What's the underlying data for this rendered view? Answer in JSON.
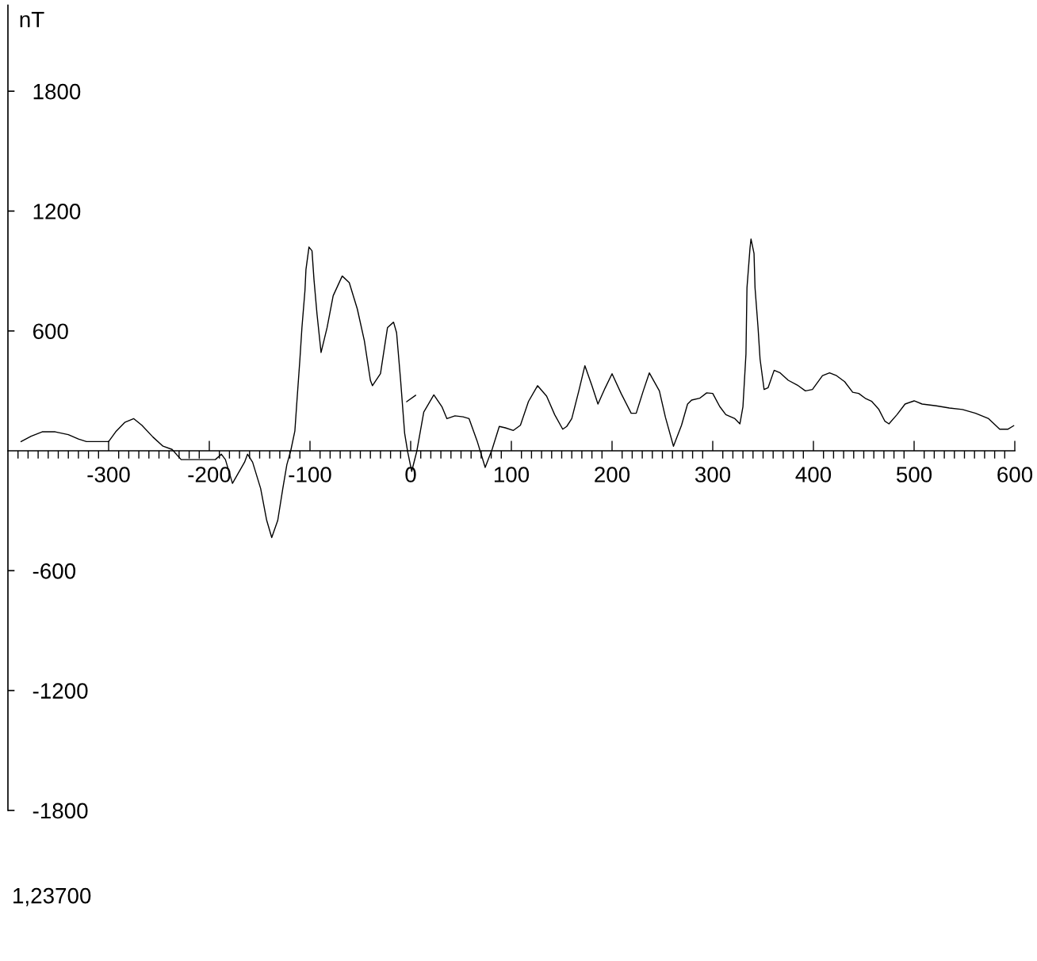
{
  "chart_data": {
    "type": "line",
    "ylabel": "nT",
    "annotations": [
      "1,23700"
    ],
    "xlim": [
      -400,
      600
    ],
    "ylim": [
      -1800,
      2230
    ],
    "xticks": [
      {
        "value": -390,
        "label": null
      },
      {
        "value": -380,
        "label": null
      },
      {
        "value": -370,
        "label": null
      },
      {
        "value": -360,
        "label": null
      },
      {
        "value": -350,
        "label": null
      },
      {
        "value": -340,
        "label": null
      },
      {
        "value": -330,
        "label": null
      },
      {
        "value": -320,
        "label": null
      },
      {
        "value": -310,
        "label": null
      },
      -300,
      {
        "value": -290,
        "label": null
      },
      {
        "value": -280,
        "label": null
      },
      {
        "value": -270,
        "label": null
      },
      {
        "value": -260,
        "label": null
      },
      {
        "value": -250,
        "label": null
      },
      {
        "value": -240,
        "label": null
      },
      {
        "value": -230,
        "label": null
      },
      {
        "value": -220,
        "label": null
      },
      {
        "value": -210,
        "label": null
      },
      -200,
      {
        "value": -190,
        "label": null
      },
      {
        "value": -180,
        "label": null
      },
      {
        "value": -170,
        "label": null
      },
      {
        "value": -160,
        "label": null
      },
      {
        "value": -150,
        "label": null
      },
      {
        "value": -140,
        "label": null
      },
      {
        "value": -130,
        "label": null
      },
      {
        "value": -120,
        "label": null
      },
      {
        "value": -110,
        "label": null
      },
      -100,
      {
        "value": -90,
        "label": null
      },
      {
        "value": -80,
        "label": null
      },
      {
        "value": -70,
        "label": null
      },
      {
        "value": -60,
        "label": null
      },
      {
        "value": -50,
        "label": null
      },
      {
        "value": -40,
        "label": null
      },
      {
        "value": -30,
        "label": null
      },
      {
        "value": -20,
        "label": null
      },
      {
        "value": -10,
        "label": null
      },
      0,
      {
        "value": 10,
        "label": null
      },
      {
        "value": 20,
        "label": null
      },
      {
        "value": 30,
        "label": null
      },
      {
        "value": 40,
        "label": null
      },
      {
        "value": 50,
        "label": null
      },
      {
        "value": 60,
        "label": null
      },
      {
        "value": 70,
        "label": null
      },
      {
        "value": 80,
        "label": null
      },
      {
        "value": 90,
        "label": null
      },
      100,
      {
        "value": 110,
        "label": null
      },
      {
        "value": 120,
        "label": null
      },
      {
        "value": 130,
        "label": null
      },
      {
        "value": 140,
        "label": null
      },
      {
        "value": 150,
        "label": null
      },
      {
        "value": 160,
        "label": null
      },
      {
        "value": 170,
        "label": null
      },
      {
        "value": 180,
        "label": null
      },
      {
        "value": 190,
        "label": null
      },
      200,
      {
        "value": 210,
        "label": null
      },
      {
        "value": 220,
        "label": null
      },
      {
        "value": 230,
        "label": null
      },
      {
        "value": 240,
        "label": null
      },
      {
        "value": 250,
        "label": null
      },
      {
        "value": 260,
        "label": null
      },
      {
        "value": 270,
        "label": null
      },
      {
        "value": 280,
        "label": null
      },
      {
        "value": 290,
        "label": null
      },
      300,
      {
        "value": 310,
        "label": null
      },
      {
        "value": 320,
        "label": null
      },
      {
        "value": 330,
        "label": null
      },
      {
        "value": 340,
        "label": null
      },
      {
        "value": 350,
        "label": null
      },
      {
        "value": 360,
        "label": null
      },
      {
        "value": 370,
        "label": null
      },
      {
        "value": 380,
        "label": null
      },
      {
        "value": 390,
        "label": null
      },
      400,
      {
        "value": 410,
        "label": null
      },
      {
        "value": 420,
        "label": null
      },
      {
        "value": 430,
        "label": null
      },
      {
        "value": 440,
        "label": null
      },
      {
        "value": 450,
        "label": null
      },
      {
        "value": 460,
        "label": null
      },
      {
        "value": 470,
        "label": null
      },
      {
        "value": 480,
        "label": null
      },
      {
        "value": 490,
        "label": null
      },
      500,
      {
        "value": 510,
        "label": null
      },
      {
        "value": 520,
        "label": null
      },
      {
        "value": 530,
        "label": null
      },
      {
        "value": 540,
        "label": null
      },
      {
        "value": 550,
        "label": null
      },
      {
        "value": 560,
        "label": null
      },
      {
        "value": 570,
        "label": null
      },
      {
        "value": 580,
        "label": null
      },
      {
        "value": 590,
        "label": null
      },
      600
    ],
    "yticks": [
      -1800,
      -1200,
      -600,
      600,
      1200,
      1800
    ],
    "marker": "none",
    "line_style": "solid",
    "series": [
      {
        "color": "#000000",
        "x": [
          -387,
          -377,
          -366,
          -353,
          -340,
          -330,
          -322,
          -300,
          -293,
          -284,
          -275,
          -267,
          -256,
          -246,
          -237,
          -228,
          -194,
          -188,
          -184,
          -177,
          -165,
          -162,
          -157,
          -149,
          -143,
          -138,
          -132,
          -127,
          -123,
          -119,
          -115,
          -113,
          -110,
          -108,
          -105,
          -104,
          -101,
          -98,
          -96,
          -93,
          -89,
          -83,
          -77,
          -68,
          -61,
          -53,
          -46,
          -40,
          -38,
          -30,
          -23,
          -17,
          -14,
          -10,
          -6,
          -3,
          1,
          6,
          13,
          23,
          31,
          36,
          44,
          52,
          58,
          66,
          74,
          81,
          88,
          94,
          102,
          109,
          117,
          126,
          135,
          143,
          151,
          155,
          160,
          167,
          173,
          180,
          186,
          193,
          200,
          209,
          219,
          224,
          231,
          237,
          247,
          253,
          261,
          269,
          275,
          279,
          287,
          294,
          300,
          307,
          313,
          322,
          327,
          330,
          333,
          334,
          337,
          338,
          341,
          342,
          345,
          347,
          351,
          355,
          361,
          367,
          375,
          384,
          392,
          399,
          409,
          416,
          423,
          431,
          439,
          445,
          452,
          458,
          465,
          471,
          475,
          483,
          491,
          500,
          508,
          522,
          535,
          548,
          561,
          574,
          585,
          593,
          599
        ],
        "values": [
          46,
          73,
          95,
          95,
          81,
          59,
          46,
          46,
          95,
          142,
          161,
          128,
          69,
          23,
          7,
          -44,
          -44,
          -17,
          -44,
          -163,
          -57,
          -17,
          -57,
          -189,
          -348,
          -434,
          -348,
          -189,
          -70,
          3,
          100,
          247,
          459,
          617,
          802,
          908,
          1020,
          1001,
          855,
          683,
          492,
          617,
          776,
          875,
          842,
          710,
          551,
          353,
          326,
          386,
          617,
          644,
          591,
          353,
          88,
          -4,
          -103,
          -4,
          194,
          280,
          221,
          161,
          175,
          170,
          161,
          49,
          -83,
          9,
          122,
          115,
          102,
          128,
          247,
          326,
          274,
          181,
          108,
          122,
          161,
          300,
          426,
          326,
          234,
          313,
          386,
          287,
          188,
          188,
          300,
          390,
          300,
          168,
          23,
          128,
          234,
          254,
          263,
          290,
          287,
          221,
          181,
          161,
          135,
          221,
          485,
          816,
          1014,
          1060,
          988,
          816,
          617,
          459,
          307,
          316,
          403,
          390,
          353,
          329,
          300,
          307,
          376,
          390,
          376,
          346,
          293,
          287,
          261,
          247,
          207,
          148,
          135,
          181,
          234,
          250,
          234,
          225,
          214,
          207,
          188,
          161,
          108,
          108,
          126
        ]
      },
      {
        "color": "#000000",
        "x": [
          -4,
          5
        ],
        "values": [
          246,
          278
        ]
      }
    ]
  }
}
